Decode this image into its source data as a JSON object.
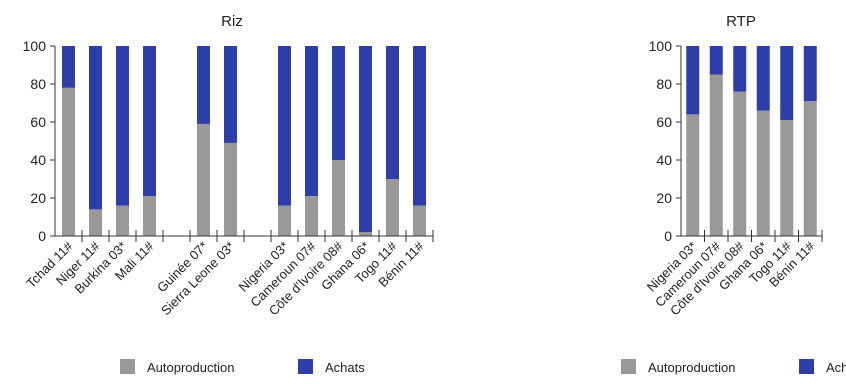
{
  "colors": {
    "autoproduction": "#999999",
    "achats": "#2e3ea8",
    "axis": "#333333"
  },
  "chart_data": [
    {
      "type": "bar",
      "stacked": true,
      "title": "Riz",
      "ylim": [
        0,
        100
      ],
      "yticks": [
        0,
        20,
        40,
        60,
        80,
        100
      ],
      "categories": [
        "Tchad 11#",
        "Niger 11#",
        "Burkina 03*",
        "Mali 11#",
        "",
        "Guinée 07*",
        "Sierra Leone 03*",
        "",
        "Nigeria 03*",
        "Cameroun 07#",
        "Côte d'Ivoire 08#",
        "Ghana 06*",
        "Togo 11#",
        "Bénin 11#"
      ],
      "series": [
        {
          "name": "Autoproduction",
          "values": [
            78,
            14,
            16,
            21,
            null,
            59,
            49,
            null,
            16,
            21,
            40,
            2,
            30,
            16
          ]
        },
        {
          "name": "Achats",
          "values": [
            22,
            86,
            84,
            79,
            null,
            41,
            51,
            null,
            84,
            79,
            60,
            98,
            70,
            84
          ]
        }
      ],
      "legend": [
        "Autoproduction",
        "Achats"
      ],
      "legend_position": "bottom",
      "grid": false
    },
    {
      "type": "bar",
      "stacked": true,
      "title": "RTP",
      "ylim": [
        0,
        100
      ],
      "yticks": [
        0,
        20,
        40,
        60,
        80,
        100
      ],
      "categories": [
        "Nigeria 03*",
        "Cameroun 07#",
        "Côte d'Ivoire 08#",
        "Ghana 06*",
        "Togo 11#",
        "Bénin 11#"
      ],
      "series": [
        {
          "name": "Autoproduction",
          "values": [
            64,
            85,
            76,
            66,
            61,
            71
          ]
        },
        {
          "name": "Achats",
          "values": [
            36,
            15,
            24,
            34,
            39,
            29
          ]
        }
      ],
      "legend": [
        "Autoproduction",
        "Achats"
      ],
      "legend_position": "bottom",
      "grid": false
    }
  ]
}
